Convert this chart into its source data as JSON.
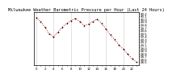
{
  "title": "Milwaukee Weather Barometric Pressure per Hour (Last 24 Hours)",
  "hours": [
    0,
    1,
    2,
    3,
    4,
    5,
    6,
    7,
    8,
    9,
    10,
    11,
    12,
    13,
    14,
    15,
    16,
    17,
    18,
    19,
    20,
    21,
    22,
    23
  ],
  "pressure": [
    30.05,
    29.92,
    29.72,
    29.48,
    29.38,
    29.55,
    29.72,
    29.85,
    29.95,
    30.02,
    29.92,
    29.78,
    29.82,
    29.92,
    30.0,
    29.85,
    29.65,
    29.45,
    29.28,
    29.1,
    28.95,
    28.78,
    28.62,
    28.5
  ],
  "line_color": "#cc0000",
  "marker_color": "#000000",
  "grid_color": "#999999",
  "bg_color": "#ffffff",
  "ymin": 28.4,
  "ymax": 30.25,
  "ytick_values": [
    28.5,
    28.6,
    28.7,
    28.8,
    28.9,
    29.0,
    29.1,
    29.2,
    29.3,
    29.4,
    29.5,
    29.6,
    29.7,
    29.8,
    29.9,
    30.0,
    30.1,
    30.2
  ],
  "xtick_every": 2,
  "title_fontsize": 3.8,
  "tick_fontsize": 2.8,
  "grid_every": 4
}
